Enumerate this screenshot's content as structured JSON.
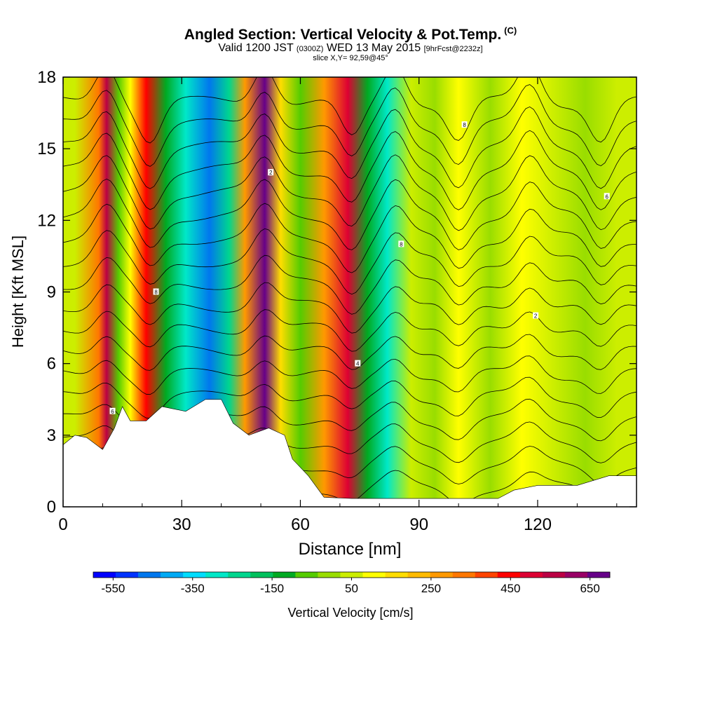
{
  "chart_data": {
    "type": "heatmap",
    "title": "Angled Section: Vertical Velocity & Pot.Temp.",
    "title_tag": "(C)",
    "subtitle_prefix": "Valid 1200 JST",
    "subtitle_z": "(0300Z)",
    "subtitle_date": "WED 13 May 2015",
    "subtitle_fcst": "[9hrFcst@2232z]",
    "slice_info": "slice X,Y= 92,59@45°",
    "xlabel": "Distance [nm]",
    "ylabel": "Height [Kft MSL]",
    "xlim": [
      0,
      145
    ],
    "ylim": [
      0,
      18
    ],
    "xticks": [
      "0",
      "30",
      "60",
      "90",
      "120"
    ],
    "xtick_values": [
      0,
      30,
      60,
      90,
      120
    ],
    "yticks": [
      "0",
      "3",
      "6",
      "9",
      "12",
      "15",
      "18"
    ],
    "ytick_values": [
      0,
      3,
      6,
      9,
      12,
      15,
      18
    ],
    "colorbar": {
      "label": "Vertical Velocity [cm/s]",
      "tick_labels": [
        "-550",
        "-350",
        "-150",
        "50",
        "250",
        "450",
        "650"
      ],
      "tick_values": [
        -550,
        -350,
        -150,
        50,
        250,
        450,
        650
      ],
      "bins": [
        -600,
        700
      ],
      "colors": [
        "#0000ff",
        "#0033ff",
        "#0077ee",
        "#00aaf5",
        "#00ddff",
        "#00e8c8",
        "#00d68e",
        "#00c05c",
        "#00aa22",
        "#55cc00",
        "#99dd00",
        "#ccee00",
        "#ffff00",
        "#ffdd00",
        "#ffbb00",
        "#ff9900",
        "#ff7700",
        "#ff4400",
        "#ff0000",
        "#dd0033",
        "#bb0044",
        "#990066",
        "#660088"
      ]
    },
    "velocity_bands": [
      {
        "x": 3,
        "value": 50
      },
      {
        "x": 9,
        "value": 350
      },
      {
        "x": 11,
        "value": 550
      },
      {
        "x": 14,
        "value": -50
      },
      {
        "x": 17,
        "value": 100
      },
      {
        "x": 21,
        "value": 450
      },
      {
        "x": 26,
        "value": -100
      },
      {
        "x": 31,
        "value": -300
      },
      {
        "x": 37,
        "value": -450
      },
      {
        "x": 42,
        "value": -250
      },
      {
        "x": 46,
        "value": 300
      },
      {
        "x": 51,
        "value": 650
      },
      {
        "x": 55,
        "value": 150
      },
      {
        "x": 60,
        "value": -50
      },
      {
        "x": 66,
        "value": 250
      },
      {
        "x": 72,
        "value": 500
      },
      {
        "x": 77,
        "value": -100
      },
      {
        "x": 82,
        "value": -300
      },
      {
        "x": 88,
        "value": 50
      },
      {
        "x": 94,
        "value": 0
      },
      {
        "x": 100,
        "value": 100
      },
      {
        "x": 108,
        "value": 0
      },
      {
        "x": 116,
        "value": 100
      },
      {
        "x": 124,
        "value": 50
      },
      {
        "x": 132,
        "value": 0
      },
      {
        "x": 140,
        "value": 50
      }
    ],
    "terrain": [
      {
        "x": 0,
        "h": 2.6
      },
      {
        "x": 3,
        "h": 3.0
      },
      {
        "x": 6,
        "h": 2.9
      },
      {
        "x": 10,
        "h": 2.4
      },
      {
        "x": 13,
        "h": 3.3
      },
      {
        "x": 15,
        "h": 4.2
      },
      {
        "x": 17,
        "h": 3.6
      },
      {
        "x": 21,
        "h": 3.6
      },
      {
        "x": 25,
        "h": 4.2
      },
      {
        "x": 31,
        "h": 4.0
      },
      {
        "x": 36,
        "h": 4.5
      },
      {
        "x": 40,
        "h": 4.5
      },
      {
        "x": 43,
        "h": 3.5
      },
      {
        "x": 47,
        "h": 3.0
      },
      {
        "x": 52,
        "h": 3.3
      },
      {
        "x": 56,
        "h": 3.0
      },
      {
        "x": 58,
        "h": 2.0
      },
      {
        "x": 62,
        "h": 1.3
      },
      {
        "x": 66,
        "h": 0.4
      },
      {
        "x": 73,
        "h": 0.35
      },
      {
        "x": 90,
        "h": 0.35
      },
      {
        "x": 110,
        "h": 0.35
      },
      {
        "x": 114,
        "h": 0.7
      },
      {
        "x": 120,
        "h": 0.9
      },
      {
        "x": 130,
        "h": 0.9
      },
      {
        "x": 138,
        "h": 1.3
      },
      {
        "x": 145,
        "h": 1.3
      }
    ],
    "isentropes": {
      "count": 18,
      "base_height": 0.8,
      "spacing": 0.95,
      "wave_centers": [
        11,
        22,
        51,
        73,
        84,
        100,
        118,
        136
      ],
      "wave_amplitude": 1.2
    },
    "contour_labels": [
      "6",
      "8",
      "2",
      "4",
      "8",
      "8",
      "2",
      "6"
    ]
  }
}
